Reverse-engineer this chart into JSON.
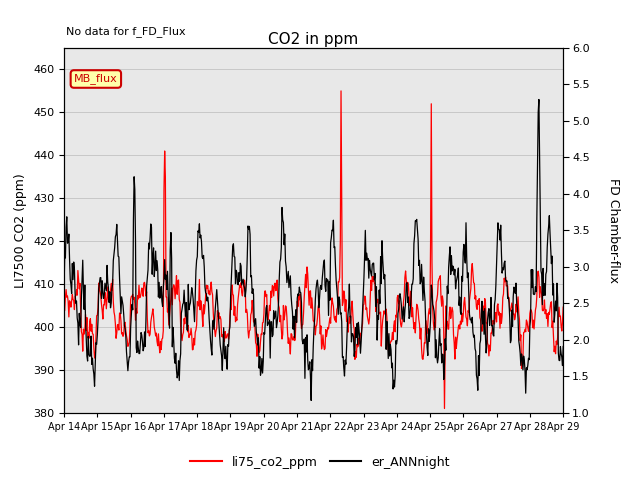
{
  "title": "CO2 in ppm",
  "top_left_text": "No data for f_FD_Flux",
  "ylabel_left": "LI7500 CO2 (ppm)",
  "ylabel_right": "FD Chamber-flux",
  "ylim_left": [
    380,
    465
  ],
  "ylim_right": [
    1.0,
    6.0
  ],
  "yticks_left": [
    380,
    390,
    400,
    410,
    420,
    430,
    440,
    450,
    460
  ],
  "yticks_right": [
    1.0,
    1.5,
    2.0,
    2.5,
    3.0,
    3.5,
    4.0,
    4.5,
    5.0,
    5.5,
    6.0
  ],
  "xtick_labels": [
    "Apr 14",
    "Apr 15",
    "Apr 16",
    "Apr 17",
    "Apr 18",
    "Apr 19",
    "Apr 20",
    "Apr 21",
    "Apr 22",
    "Apr 23",
    "Apr 24",
    "Apr 25",
    "Apr 26",
    "Apr 27",
    "Apr 28",
    "Apr 29"
  ],
  "color_red": "#ff0000",
  "color_black": "#000000",
  "legend_labels": [
    "li75_co2_ppm",
    "er_ANNnight"
  ],
  "annotation_box_text": "MB_flux",
  "annotation_box_color": "#cc0000",
  "annotation_box_fill": "#ffffaa",
  "background_color": "#e8e8e8",
  "plot_background": "#ffffff",
  "figsize": [
    6.4,
    4.8
  ],
  "dpi": 100
}
